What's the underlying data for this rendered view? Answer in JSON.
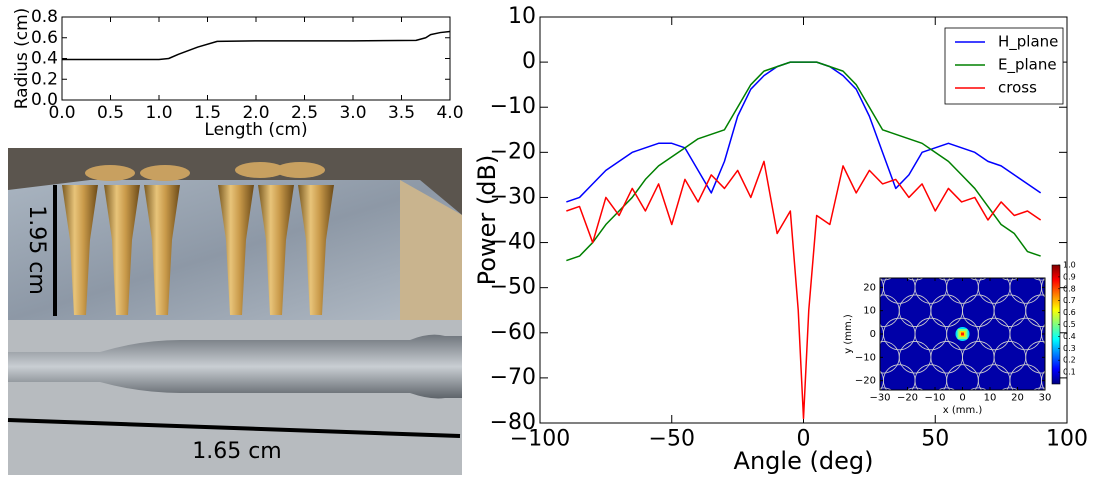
{
  "chart_data": [
    {
      "type": "line",
      "x_label": "Length (cm)",
      "y_label": "Radius (cm)",
      "x": [
        0,
        1.0,
        1.1,
        1.2,
        1.4,
        1.6,
        2.0,
        3.0,
        3.65,
        3.75,
        3.8,
        3.9,
        4.0
      ],
      "values": [
        0.39,
        0.39,
        0.4,
        0.44,
        0.51,
        0.565,
        0.57,
        0.57,
        0.575,
        0.6,
        0.63,
        0.65,
        0.66
      ],
      "color": "#000000",
      "xlim": [
        0,
        4
      ],
      "ylim": [
        0,
        0.8
      ],
      "xticks": [
        {
          "value": 0,
          "label": "0.0"
        },
        0.5,
        {
          "value": 1,
          "label": "1.0"
        },
        1.5,
        {
          "value": 2,
          "label": "2.0"
        },
        2.5,
        {
          "value": 3,
          "label": "3.0"
        },
        3.5,
        {
          "value": 4,
          "label": "4.0"
        }
      ],
      "yticks": [
        {
          "value": 0,
          "label": "0.0"
        },
        0.2,
        0.4,
        0.6,
        0.8
      ]
    },
    {
      "type": "line",
      "x_label": "Angle (deg)",
      "y_label": "Power (dB)",
      "x": [
        -90,
        -85,
        -80,
        -75,
        -70,
        -65,
        -60,
        -55,
        -50,
        -45,
        -40,
        -35,
        -30,
        -25,
        -20,
        -15,
        -10,
        -5,
        -2,
        0,
        2,
        5,
        10,
        15,
        20,
        25,
        30,
        35,
        40,
        45,
        50,
        55,
        60,
        65,
        70,
        75,
        80,
        85,
        90
      ],
      "series": [
        {
          "name": "H_plane",
          "color": "#0000ff",
          "values": [
            -31,
            -30,
            -27,
            -24,
            -22,
            -20,
            -19,
            -18,
            -18,
            -19,
            -24,
            -29,
            -22,
            -12,
            -6,
            -3,
            -1,
            0,
            0,
            0,
            0,
            0,
            -1,
            -3,
            -6,
            -12,
            -20,
            -28,
            -25,
            -20,
            -19,
            -18,
            -19,
            -20,
            -22,
            -23,
            -25,
            -27,
            -29
          ]
        },
        {
          "name": "E_plane",
          "color": "#008000",
          "values": [
            -44,
            -43,
            -40,
            -36,
            -33,
            -30,
            -26,
            -23,
            -21,
            -19,
            -17,
            -16,
            -15,
            -10,
            -5,
            -2,
            -1,
            0,
            0,
            0,
            0,
            0,
            -1,
            -2,
            -5,
            -10,
            -15,
            -16,
            -17,
            -18,
            -20,
            -22,
            -25,
            -28,
            -32,
            -36,
            -38,
            -42,
            -43
          ]
        },
        {
          "name": "cross",
          "color": "#ff0000",
          "values": [
            -33,
            -32,
            -40,
            -30,
            -34,
            -28,
            -33,
            -27,
            -36,
            -26,
            -31,
            -25,
            -28,
            -24,
            -30,
            -22,
            -38,
            -33,
            -55,
            -79,
            -55,
            -34,
            -36,
            -23,
            -29,
            -24,
            -27,
            -26,
            -30,
            -27,
            -33,
            -28,
            -31,
            -30,
            -35,
            -31,
            -34,
            -33,
            -35
          ]
        }
      ],
      "xlim": [
        -100,
        100
      ],
      "ylim": [
        -80,
        10
      ],
      "xticks": [
        {
          "value": -100,
          "label": "−100"
        },
        {
          "value": -50,
          "label": "−50"
        },
        0,
        50,
        100
      ],
      "yticks": [
        {
          "value": -80,
          "label": "−80"
        },
        {
          "value": -70,
          "label": "−70"
        },
        {
          "value": -60,
          "label": "−60"
        },
        {
          "value": -50,
          "label": "−50"
        },
        {
          "value": -40,
          "label": "−40"
        },
        {
          "value": -30,
          "label": "−30"
        },
        {
          "value": -20,
          "label": "−20"
        },
        {
          "value": -10,
          "label": "−10"
        },
        0,
        10
      ],
      "legend": "upper right"
    },
    {
      "type": "heatmap",
      "x_label": "x (mm.)",
      "y_label": "y (mm.)",
      "xlim": [
        -30,
        30
      ],
      "ylim": [
        -24,
        24
      ],
      "xticks": [
        {
          "value": -30,
          "label": "−30"
        },
        {
          "value": -20,
          "label": "−20"
        },
        {
          "value": -10,
          "label": "−10"
        },
        0,
        10,
        20,
        30
      ],
      "yticks": [
        {
          "value": -20,
          "label": "−20"
        },
        {
          "value": -10,
          "label": "−10"
        },
        0,
        10,
        20
      ],
      "clim": [
        0,
        1
      ],
      "colorbar_ticks": [
        0.1,
        0.2,
        0.3,
        0.4,
        0.5,
        0.6,
        0.7,
        0.8,
        0.9,
        {
          "value": 1,
          "label": "1.0"
        }
      ]
    }
  ],
  "photos": {
    "height_label": "1.95 cm",
    "length_label": "1.65 cm"
  }
}
